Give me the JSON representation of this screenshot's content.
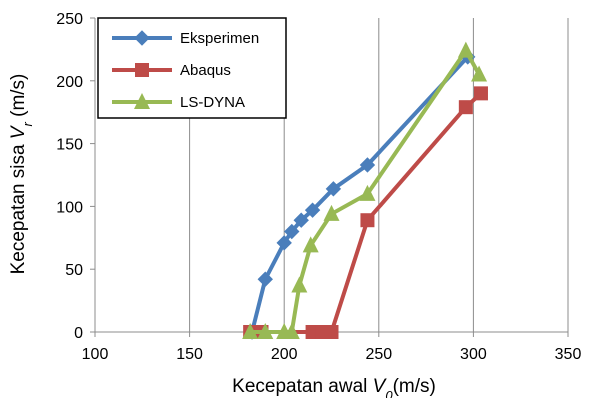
{
  "chart_data": {
    "type": "line",
    "title": "",
    "xlabel": "Kecepatan awal V0(m/s)",
    "xlabel_main": "Kecepatan awal ",
    "xlabel_var": "V",
    "xlabel_sub": "0",
    "xlabel_unit": "(m/s)",
    "ylabel": "Kecepatan sisa Vr (m/s)",
    "ylabel_main": "Kecepatan sisa ",
    "ylabel_var": "V",
    "ylabel_sub": "r",
    "ylabel_unit": " (m/s)",
    "xlim": [
      100,
      350
    ],
    "ylim": [
      0,
      250
    ],
    "xticks": [
      100,
      150,
      200,
      250,
      300,
      350
    ],
    "yticks": [
      0,
      50,
      100,
      150,
      200,
      250
    ],
    "grid": "vertical",
    "legend_position": "top-left",
    "series": [
      {
        "name": "Eksperimen",
        "color": "#4a7ebb",
        "marker": "diamond",
        "x": [
          183,
          190,
          200,
          204,
          209,
          215,
          226,
          244,
          297
        ],
        "y": [
          0,
          42,
          71,
          80,
          89,
          97,
          114,
          133,
          219
        ]
      },
      {
        "name": "Abaqus",
        "color": "#be4b48",
        "marker": "square",
        "x": [
          182,
          188,
          215,
          220,
          225,
          244,
          296,
          304
        ],
        "y": [
          0,
          0,
          0,
          0,
          0,
          89,
          179,
          190
        ]
      },
      {
        "name": "LS-DYNA",
        "color": "#98b954",
        "marker": "triangle",
        "x": [
          182,
          190,
          200,
          204,
          208,
          214,
          225,
          244,
          296,
          303
        ],
        "y": [
          0,
          0,
          0,
          0,
          37,
          69,
          94,
          110,
          224,
          205
        ]
      }
    ]
  }
}
